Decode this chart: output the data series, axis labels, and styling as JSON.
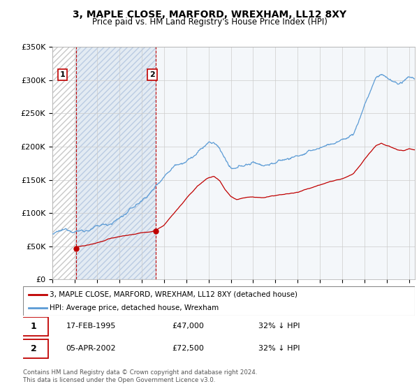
{
  "title": "3, MAPLE CLOSE, MARFORD, WREXHAM, LL12 8XY",
  "subtitle": "Price paid vs. HM Land Registry's House Price Index (HPI)",
  "ylim": [
    0,
    350000
  ],
  "yticks": [
    0,
    50000,
    100000,
    150000,
    200000,
    250000,
    300000,
    350000
  ],
  "ytick_labels": [
    "£0",
    "£50K",
    "£100K",
    "£150K",
    "£200K",
    "£250K",
    "£300K",
    "£350K"
  ],
  "hpi_color": "#5b9bd5",
  "price_color": "#c00000",
  "sale1_date": 1995.12,
  "sale1_price": 47000,
  "sale2_date": 2002.26,
  "sale2_price": 72500,
  "legend_label1": "3, MAPLE CLOSE, MARFORD, WREXHAM, LL12 8XY (detached house)",
  "legend_label2": "HPI: Average price, detached house, Wrexham",
  "annotation1_date": "17-FEB-1995",
  "annotation1_price": "£47,000",
  "annotation1_hpi": "32% ↓ HPI",
  "annotation2_date": "05-APR-2002",
  "annotation2_price": "£72,500",
  "annotation2_hpi": "32% ↓ HPI",
  "footer": "Contains HM Land Registry data © Crown copyright and database right 2024.\nThis data is licensed under the Open Government Licence v3.0.",
  "hatch_color": "#dce6f1",
  "xlim_start": 1993.0,
  "xlim_end": 2025.5
}
